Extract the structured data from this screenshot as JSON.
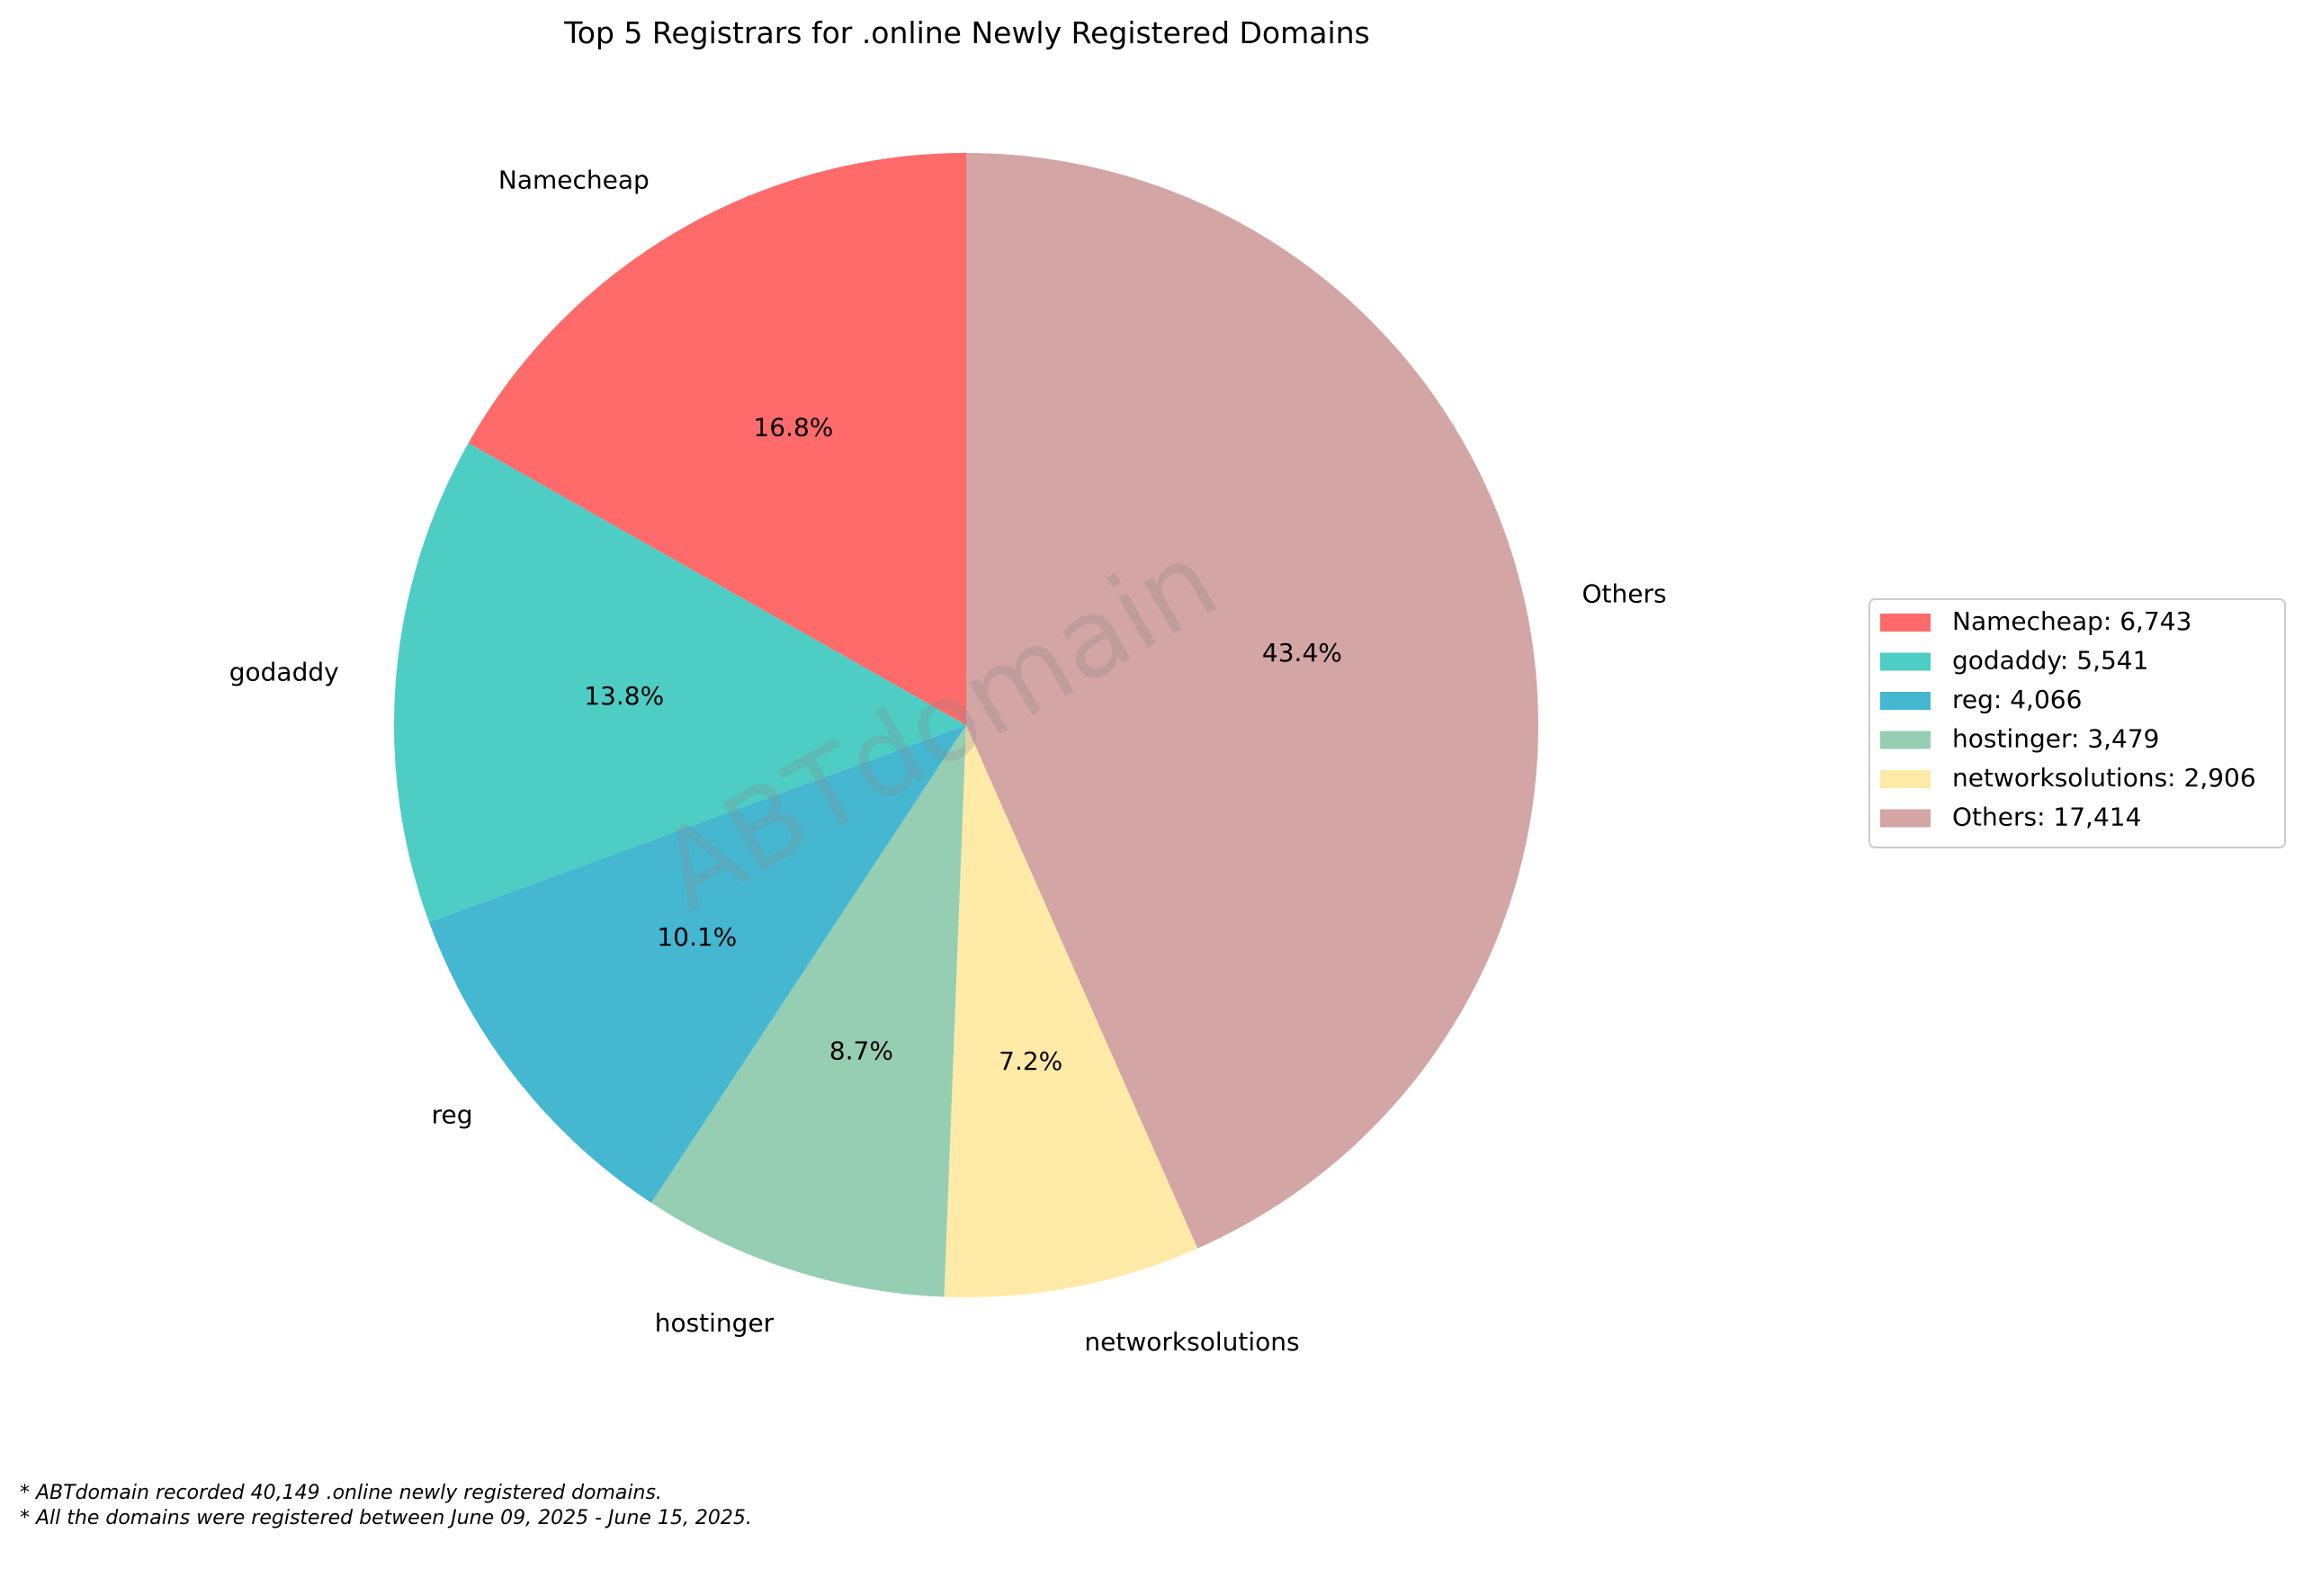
{
  "chart_data": {
    "type": "pie",
    "title": "Top 5 Registrars for .online Newly Registered Domains",
    "categories": [
      "Namecheap",
      "godaddy",
      "reg",
      "hostinger",
      "networksolutions",
      "Others"
    ],
    "values": [
      6743,
      5541,
      4066,
      3479,
      2906,
      17414
    ],
    "percent_labels": [
      "16.8%",
      "13.8%",
      "10.1%",
      "8.7%",
      "7.2%",
      "43.4%"
    ],
    "legend_entries": [
      "Namecheap: 6,743",
      "godaddy: 5,541",
      "reg: 4,066",
      "hostinger: 3,479",
      "networksolutions: 2,906",
      "Others: 17,414"
    ],
    "colors": [
      "#ff6b6b",
      "#4ecdc4",
      "#45b7d1",
      "#96ceb4",
      "#ffeaa7",
      "#d4a5a5"
    ],
    "start_angle_deg": 90,
    "direction": "counterclockwise",
    "legend_position": "center-right"
  },
  "watermark": "ABTdomain",
  "footnotes": [
    "* ABTdomain recorded 40,149 .online newly registered domains.",
    "* All the domains were registered between June 09, 2025 - June 15, 2025."
  ]
}
